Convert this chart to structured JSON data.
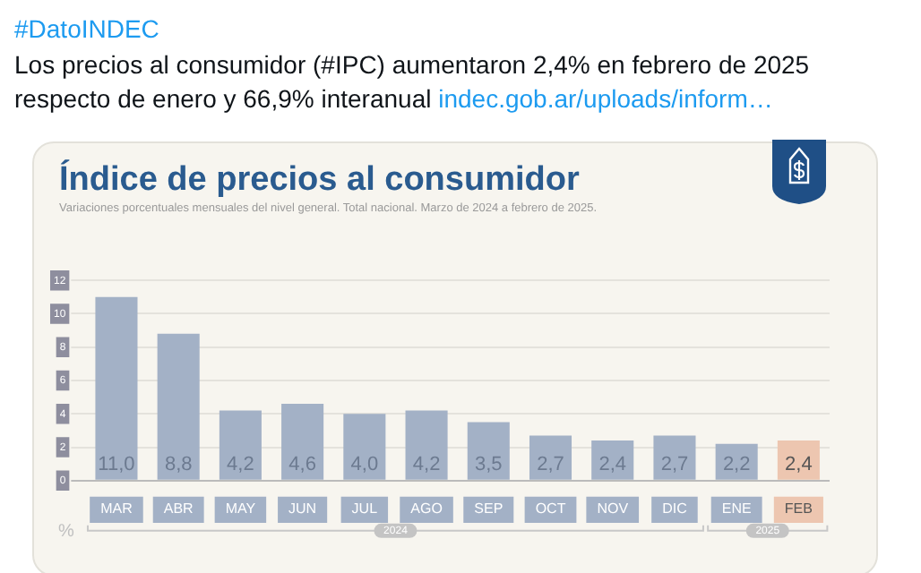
{
  "chart_data": {
    "type": "bar",
    "title": "Índice de precios al consumidor",
    "subtitle": "Variaciones porcentuales mensuales del nivel general. Total nacional. Marzo de 2024 a febrero de 2025.",
    "ylabel": "%",
    "categories": [
      "MAR",
      "ABR",
      "MAY",
      "JUN",
      "JUL",
      "AGO",
      "SEP",
      "OCT",
      "NOV",
      "DIC",
      "ENE",
      "FEB"
    ],
    "values": [
      11.0,
      8.8,
      4.2,
      4.6,
      4.0,
      4.2,
      3.5,
      2.7,
      2.4,
      2.7,
      2.2,
      2.4
    ],
    "colors": [
      "#a3b1c6",
      "#a3b1c6",
      "#a3b1c6",
      "#a3b1c6",
      "#a3b1c6",
      "#a3b1c6",
      "#a3b1c6",
      "#a3b1c6",
      "#a3b1c6",
      "#a3b1c6",
      "#a3b1c6",
      "#edc6b0"
    ],
    "value_labels": [
      "11,0",
      "8,8",
      "4,2",
      "4,6",
      "4,0",
      "4,2",
      "3,5",
      "2,7",
      "2,4",
      "2,7",
      "2,2",
      "2,4"
    ],
    "ylim": [
      0,
      12
    ],
    "yticks": [
      0,
      2,
      4,
      6,
      8,
      10,
      12
    ],
    "grid": "y",
    "legend": false,
    "annotations": [
      "#DatoINDEC",
      "Los precios al consumidor (#IPC) aumentaron 2,4% en febrero de 2025 respecto de enero y 66,9% interanual indec.gob.ar/uploads/inform…",
      "2024",
      "2025"
    ]
  }
}
